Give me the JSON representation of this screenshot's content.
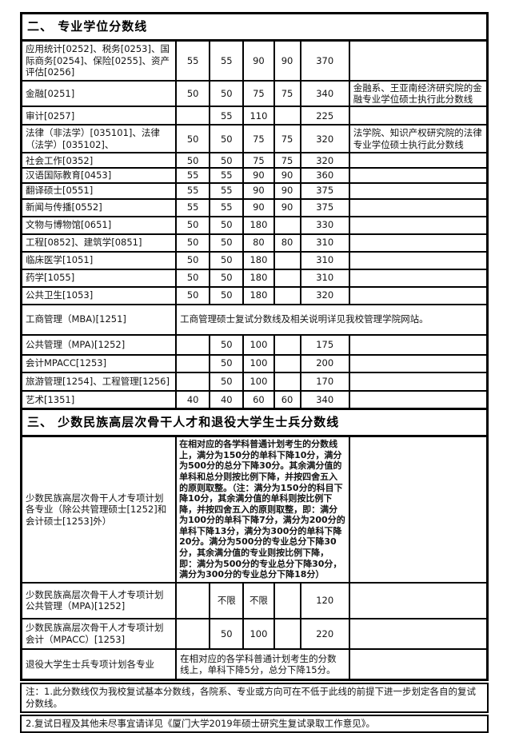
{
  "section2": {
    "title": "二、 专业学位分数线",
    "rows": [
      [
        {
          "kind": "name",
          "t": "应用统计[0252]、税务[0253]、国际商务[0254]、保险[0255]、资产评估[0256]"
        },
        {
          "kind": "score",
          "t": "55"
        },
        {
          "kind": "score",
          "t": "55"
        },
        {
          "kind": "score",
          "t": "90"
        },
        {
          "kind": "score",
          "t": "90"
        },
        {
          "kind": "score",
          "t": "370"
        },
        {
          "kind": "remark",
          "t": ""
        }
      ],
      [
        {
          "kind": "name",
          "t": "金融[0251]"
        },
        {
          "kind": "score",
          "t": "50"
        },
        {
          "kind": "score",
          "t": "50"
        },
        {
          "kind": "score",
          "t": "75"
        },
        {
          "kind": "score",
          "t": "75"
        },
        {
          "kind": "score",
          "t": "340"
        },
        {
          "kind": "remark",
          "t": "金融系、王亚南经济研究院的金融专业学位硕士执行此分数线"
        }
      ],
      [
        {
          "kind": "name",
          "t": "审计[0257]"
        },
        {
          "kind": "score",
          "t": ""
        },
        {
          "kind": "score",
          "t": "55"
        },
        {
          "kind": "score",
          "t": "110"
        },
        {
          "kind": "score",
          "t": ""
        },
        {
          "kind": "score",
          "t": "225"
        },
        {
          "kind": "remark",
          "t": ""
        }
      ],
      [
        {
          "kind": "name",
          "t": "法律（非法学）[035101]、法律（法学）[035102]、"
        },
        {
          "kind": "score",
          "t": "50"
        },
        {
          "kind": "score",
          "t": "50"
        },
        {
          "kind": "score",
          "t": "75"
        },
        {
          "kind": "score",
          "t": "75"
        },
        {
          "kind": "score",
          "t": "320"
        },
        {
          "kind": "remark",
          "t": "法学院、知识产权研究院的法律专业学位硕士执行此分数线"
        }
      ],
      [
        {
          "kind": "name",
          "t": "社会工作[0352]"
        },
        {
          "kind": "score",
          "t": "50"
        },
        {
          "kind": "score",
          "t": "50"
        },
        {
          "kind": "score",
          "t": "75"
        },
        {
          "kind": "score",
          "t": "75"
        },
        {
          "kind": "score",
          "t": "320"
        },
        {
          "kind": "remark",
          "t": ""
        }
      ],
      [
        {
          "kind": "name",
          "t": "汉语国际教育[0453]"
        },
        {
          "kind": "score",
          "t": "55"
        },
        {
          "kind": "score",
          "t": "55"
        },
        {
          "kind": "score",
          "t": "90"
        },
        {
          "kind": "score",
          "t": "90"
        },
        {
          "kind": "score",
          "t": "360"
        },
        {
          "kind": "remark",
          "t": ""
        }
      ],
      [
        {
          "kind": "name",
          "t": "翻译硕士[0551]"
        },
        {
          "kind": "score",
          "t": "55"
        },
        {
          "kind": "score",
          "t": "55"
        },
        {
          "kind": "score",
          "t": "90"
        },
        {
          "kind": "score",
          "t": "90"
        },
        {
          "kind": "score",
          "t": "375"
        },
        {
          "kind": "remark",
          "t": ""
        }
      ],
      [
        {
          "kind": "name",
          "t": "新闻与传播[0552]"
        },
        {
          "kind": "score",
          "t": "55"
        },
        {
          "kind": "score",
          "t": "55"
        },
        {
          "kind": "score",
          "t": "90"
        },
        {
          "kind": "score",
          "t": "90"
        },
        {
          "kind": "score",
          "t": "375"
        },
        {
          "kind": "remark",
          "t": ""
        }
      ],
      [
        {
          "kind": "name",
          "t": "文物与博物馆[0651]"
        },
        {
          "kind": "score",
          "t": "50"
        },
        {
          "kind": "score",
          "t": "50"
        },
        {
          "kind": "score",
          "t": "180"
        },
        {
          "kind": "score",
          "t": ""
        },
        {
          "kind": "score",
          "t": "330"
        },
        {
          "kind": "remark",
          "t": ""
        }
      ],
      [
        {
          "kind": "name",
          "t": "工程[0852]、建筑学[0851]"
        },
        {
          "kind": "score",
          "t": "50"
        },
        {
          "kind": "score",
          "t": "50"
        },
        {
          "kind": "score",
          "t": "80"
        },
        {
          "kind": "score",
          "t": "80"
        },
        {
          "kind": "score",
          "t": "310"
        },
        {
          "kind": "remark",
          "t": ""
        }
      ],
      [
        {
          "kind": "name",
          "t": "临床医学[1051]"
        },
        {
          "kind": "score",
          "t": "50"
        },
        {
          "kind": "score",
          "t": "50"
        },
        {
          "kind": "score",
          "t": "180"
        },
        {
          "kind": "score",
          "t": ""
        },
        {
          "kind": "score",
          "t": "310"
        },
        {
          "kind": "remark",
          "t": ""
        }
      ],
      [
        {
          "kind": "name",
          "t": "药学[1055]"
        },
        {
          "kind": "score",
          "t": "50"
        },
        {
          "kind": "score",
          "t": "50"
        },
        {
          "kind": "score",
          "t": "180"
        },
        {
          "kind": "score",
          "t": ""
        },
        {
          "kind": "score",
          "t": "310"
        },
        {
          "kind": "remark",
          "t": ""
        }
      ],
      [
        {
          "kind": "name",
          "t": "公共卫生[1053]"
        },
        {
          "kind": "score",
          "t": "50"
        },
        {
          "kind": "score",
          "t": "50"
        },
        {
          "kind": "score",
          "t": "180"
        },
        {
          "kind": "score",
          "t": ""
        },
        {
          "kind": "score",
          "t": "320"
        },
        {
          "kind": "remark",
          "t": ""
        }
      ],
      [
        {
          "kind": "name",
          "t": "工商管理（MBA)[1251]"
        },
        {
          "kind": "note",
          "span": 6,
          "t": "工商管理硕士复试分数线及相关说明详见我校管理学院网站。"
        }
      ],
      [
        {
          "kind": "name",
          "t": "公共管理（MPA)[1252]"
        },
        {
          "kind": "score",
          "t": ""
        },
        {
          "kind": "score",
          "t": "50"
        },
        {
          "kind": "score",
          "t": "100"
        },
        {
          "kind": "score",
          "t": ""
        },
        {
          "kind": "score",
          "t": "175"
        },
        {
          "kind": "remark",
          "t": ""
        }
      ],
      [
        {
          "kind": "name",
          "t": "会计MPACC[1253]"
        },
        {
          "kind": "score",
          "t": ""
        },
        {
          "kind": "score",
          "t": "50"
        },
        {
          "kind": "score",
          "t": "100"
        },
        {
          "kind": "score",
          "t": ""
        },
        {
          "kind": "score",
          "t": "200"
        },
        {
          "kind": "remark",
          "t": ""
        }
      ],
      [
        {
          "kind": "name",
          "t": "旅游管理[1254]、工程管理[1256]"
        },
        {
          "kind": "score",
          "t": ""
        },
        {
          "kind": "score",
          "t": "50"
        },
        {
          "kind": "score",
          "t": "100"
        },
        {
          "kind": "score",
          "t": ""
        },
        {
          "kind": "score",
          "t": "170"
        },
        {
          "kind": "remark",
          "t": ""
        }
      ],
      [
        {
          "kind": "name",
          "t": "艺术[1351]"
        },
        {
          "kind": "score",
          "t": "40"
        },
        {
          "kind": "score",
          "t": "40"
        },
        {
          "kind": "score",
          "t": "60"
        },
        {
          "kind": "score",
          "t": "60"
        },
        {
          "kind": "score",
          "t": "340"
        },
        {
          "kind": "remark",
          "t": ""
        }
      ]
    ]
  },
  "section3": {
    "title": "三、 少数民族高层次骨干人才和退役大学生士兵分数线",
    "rows": [
      [
        {
          "kind": "name",
          "t": "少数民族高层次骨干人才专项计划各专业（除公共管理硕士[1252]和会计硕士[1253]外）"
        },
        {
          "kind": "note",
          "span": 5,
          "t": "在相对应的各学科普通计划考生的分数线上，满分为150分的单科下降10分，满分为500分的总分下降30分。其余满分值的单科和总分则按比例下降，并按四舍五入的原则取整。（注：满分为150分的科目下降10分，其余满分值的单科则按比例下降，并按四舍五入的原则取整，即：满分为100分的单科下降7分，满分为200分的单科下降13分，满分为300分的单科下降20分。满分为500分的专业总分下降30分，其余满分值的专业则按比例下降，即：满分为500分的专业总分下降30分，满分为300分的专业总分下降18分）"
        },
        {
          "kind": "remark",
          "t": ""
        }
      ],
      [
        {
          "kind": "name",
          "t": "少数民族高层次骨干人才专项计划公共管理（MPA)[1252]"
        },
        {
          "kind": "score",
          "t": ""
        },
        {
          "kind": "score",
          "t": "不限"
        },
        {
          "kind": "score",
          "t": "不限"
        },
        {
          "kind": "score",
          "t": ""
        },
        {
          "kind": "score",
          "t": "120"
        },
        {
          "kind": "remark",
          "t": ""
        }
      ],
      [
        {
          "kind": "name",
          "t": "少数民族高层次骨干人才专项计划会计（MPACC）[1253]"
        },
        {
          "kind": "score",
          "t": ""
        },
        {
          "kind": "score",
          "t": "50"
        },
        {
          "kind": "score",
          "t": "100"
        },
        {
          "kind": "score",
          "t": ""
        },
        {
          "kind": "score",
          "t": "220"
        },
        {
          "kind": "remark",
          "t": ""
        }
      ],
      [
        {
          "kind": "name",
          "t": "退役大学生士兵专项计划各专业"
        },
        {
          "kind": "note",
          "span": 5,
          "t": "在相对应的各学科普通计划考生的分数线上，单科下降5分，总分下降15分。"
        },
        {
          "kind": "remark",
          "t": ""
        }
      ]
    ]
  },
  "notes": [
    "注：1.此分数线仅为我校复试基本分数线，各院系、专业或方向可在不低于此线的前提下进一步划定各自的复试分数线。",
    "2.复试日程及其他未尽事宜请详见《厦门大学2019年硕士研究生复试录取工作意见》。"
  ]
}
